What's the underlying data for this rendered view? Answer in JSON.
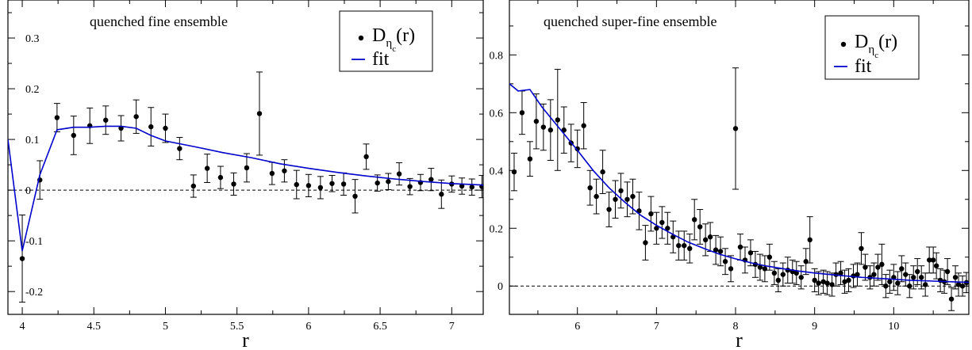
{
  "chart_data": [
    {
      "type": "scatter",
      "title": "quenched fine ensemble",
      "xlabel": "r",
      "ylabel": "",
      "xlim": [
        3.9,
        7.22
      ],
      "ylim": [
        -0.245,
        0.375
      ],
      "xticks": [
        4,
        4.5,
        5,
        5.5,
        6,
        6.5,
        7
      ],
      "xtick_labels": [
        "4",
        "4.5",
        "5",
        "5.5",
        "6",
        "6.5",
        "7"
      ],
      "yticks": [
        -0.2,
        -0.1,
        0,
        0.1,
        0.2,
        0.3
      ],
      "ytick_labels": [
        "-0.2",
        "-0.1",
        "0",
        "0.1",
        "0.2",
        "0.3"
      ],
      "grid": false,
      "reference_line_y": 0,
      "legend": {
        "placement": "top-right",
        "entries": [
          {
            "series": "data",
            "main": "D",
            "sub": "η",
            "subsub": "c",
            "suffix": "(r)"
          },
          {
            "series": "fit",
            "label": "fit"
          }
        ]
      },
      "series": [
        {
          "name": "data",
          "kind": "points_with_errors",
          "color": "#000000",
          "x": [
            4.0,
            4.123,
            4.243,
            4.359,
            4.472,
            4.583,
            4.69,
            4.796,
            4.899,
            5.0,
            5.099,
            5.196,
            5.292,
            5.385,
            5.477,
            5.568,
            5.657,
            5.745,
            5.831,
            5.916,
            6.0,
            6.083,
            6.164,
            6.245,
            6.325,
            6.403,
            6.481,
            6.557,
            6.633,
            6.708,
            6.782,
            6.856,
            6.928,
            7.0,
            7.071,
            7.141,
            7.211
          ],
          "y": [
            -0.135,
            0.02,
            0.143,
            0.108,
            0.127,
            0.138,
            0.122,
            0.145,
            0.125,
            0.122,
            0.082,
            0.008,
            0.043,
            0.025,
            0.012,
            0.044,
            0.151,
            0.033,
            0.038,
            0.011,
            0.009,
            0.005,
            0.013,
            0.012,
            -0.012,
            0.066,
            0.014,
            0.017,
            0.032,
            0.007,
            0.015,
            0.021,
            -0.008,
            0.012,
            0.008,
            0.006,
            0.007
          ],
          "err": [
            0.086,
            0.038,
            0.028,
            0.038,
            0.035,
            0.028,
            0.025,
            0.033,
            0.038,
            0.028,
            0.022,
            0.022,
            0.028,
            0.022,
            0.022,
            0.028,
            0.082,
            0.022,
            0.022,
            0.028,
            0.022,
            0.022,
            0.016,
            0.022,
            0.033,
            0.025,
            0.016,
            0.016,
            0.022,
            0.016,
            0.016,
            0.022,
            0.028,
            0.016,
            0.016,
            0.016,
            0.022
          ]
        },
        {
          "name": "fit",
          "kind": "line",
          "color": "#0000cc",
          "x": [
            3.9,
            4.0,
            4.123,
            4.243,
            4.359,
            4.472,
            4.583,
            4.69,
            4.796,
            4.899,
            5.0,
            5.2,
            5.4,
            5.6,
            5.8,
            6.0,
            6.2,
            6.4,
            6.6,
            6.8,
            7.0,
            7.22
          ],
          "y": [
            0.1,
            -0.12,
            0.03,
            0.119,
            0.124,
            0.124,
            0.126,
            0.126,
            0.122,
            0.108,
            0.097,
            0.086,
            0.074,
            0.064,
            0.052,
            0.043,
            0.035,
            0.028,
            0.022,
            0.017,
            0.013,
            0.01
          ]
        }
      ]
    },
    {
      "type": "scatter",
      "title": "quenched super-fine ensemble",
      "xlabel": "r",
      "ylabel": "",
      "xlim": [
        5.14,
        10.95
      ],
      "ylim": [
        -0.098,
        0.99
      ],
      "xticks": [
        6,
        7,
        8,
        9,
        10
      ],
      "xtick_labels": [
        "6",
        "7",
        "8",
        "9",
        "10"
      ],
      "yticks": [
        0,
        0.2,
        0.4,
        0.6,
        0.8
      ],
      "ytick_labels": [
        "0",
        "0.2",
        "0.4",
        "0.6",
        "0.8"
      ],
      "grid": false,
      "reference_line_y": 0,
      "legend": {
        "placement": "top-right",
        "entries": [
          {
            "series": "data",
            "main": "D",
            "sub": "η",
            "subsub": "c",
            "suffix": "(r)"
          },
          {
            "series": "fit",
            "label": "fit"
          }
        ]
      },
      "series": [
        {
          "name": "data",
          "kind": "points_with_errors",
          "color": "#000000",
          "x": [
            5.2,
            5.3,
            5.4,
            5.48,
            5.57,
            5.66,
            5.75,
            5.83,
            5.92,
            6.0,
            6.08,
            6.16,
            6.24,
            6.32,
            6.4,
            6.48,
            6.55,
            6.63,
            6.7,
            6.78,
            6.86,
            6.93,
            7.0,
            7.07,
            7.14,
            7.21,
            7.28,
            7.35,
            7.42,
            7.48,
            7.55,
            7.62,
            7.68,
            7.75,
            7.81,
            7.87,
            7.94,
            8.0,
            8.06,
            8.12,
            8.19,
            8.25,
            8.31,
            8.37,
            8.43,
            8.49,
            8.54,
            8.6,
            8.66,
            8.72,
            8.77,
            8.83,
            8.89,
            8.94,
            9.0,
            9.05,
            9.11,
            9.16,
            9.22,
            9.27,
            9.33,
            9.38,
            9.43,
            9.49,
            9.54,
            9.59,
            9.64,
            9.7,
            9.75,
            9.8,
            9.85,
            9.9,
            9.95,
            10.0,
            10.05,
            10.1,
            10.15,
            10.2,
            10.25,
            10.3,
            10.35,
            10.4,
            10.45,
            10.5,
            10.54,
            10.59,
            10.64,
            10.68,
            10.73,
            10.78,
            10.82,
            10.87,
            10.92
          ],
          "y": [
            0.395,
            0.6,
            0.44,
            0.57,
            0.55,
            0.54,
            0.575,
            0.54,
            0.495,
            0.475,
            0.555,
            0.34,
            0.31,
            0.395,
            0.265,
            0.3,
            0.33,
            0.3,
            0.31,
            0.26,
            0.15,
            0.25,
            0.2,
            0.22,
            0.2,
            0.17,
            0.14,
            0.14,
            0.13,
            0.23,
            0.205,
            0.16,
            0.17,
            0.125,
            0.12,
            0.085,
            0.06,
            0.545,
            0.135,
            0.09,
            0.115,
            0.075,
            0.065,
            0.06,
            0.1,
            0.045,
            0.02,
            0.04,
            0.055,
            0.05,
            0.045,
            0.03,
            0.085,
            0.16,
            0.02,
            0.01,
            0.015,
            0.01,
            0.005,
            0.04,
            0.045,
            0.015,
            0.02,
            0.035,
            0.04,
            0.13,
            0.065,
            0.03,
            0.04,
            0.065,
            0.075,
            0.0,
            0.015,
            0.03,
            0.01,
            0.06,
            0.04,
            0.0,
            0.03,
            0.05,
            0.03,
            0.005,
            0.09,
            0.09,
            0.07,
            0.02,
            0.015,
            0.05,
            -0.045,
            0.03,
            0.005,
            0.0,
            0.012
          ],
          "err": [
            0.065,
            0.075,
            0.06,
            0.095,
            0.08,
            0.105,
            0.175,
            0.08,
            0.065,
            0.065,
            0.08,
            0.06,
            0.06,
            0.075,
            0.06,
            0.065,
            0.06,
            0.06,
            0.06,
            0.065,
            0.06,
            0.06,
            0.055,
            0.055,
            0.055,
            0.055,
            0.05,
            0.05,
            0.05,
            0.07,
            0.06,
            0.055,
            0.05,
            0.05,
            0.05,
            0.045,
            0.045,
            0.21,
            0.045,
            0.045,
            0.045,
            0.045,
            0.045,
            0.045,
            0.045,
            0.04,
            0.04,
            0.04,
            0.045,
            0.04,
            0.04,
            0.04,
            0.045,
            0.08,
            0.04,
            0.04,
            0.04,
            0.04,
            0.04,
            0.04,
            0.04,
            0.04,
            0.04,
            0.04,
            0.04,
            0.055,
            0.045,
            0.04,
            0.04,
            0.045,
            0.07,
            0.04,
            0.04,
            0.045,
            0.04,
            0.045,
            0.04,
            0.04,
            0.04,
            0.045,
            0.04,
            0.04,
            0.045,
            0.045,
            0.045,
            0.04,
            0.04,
            0.045,
            0.04,
            0.04,
            0.04,
            0.035,
            0.035
          ]
        },
        {
          "name": "fit",
          "kind": "line",
          "color": "#0000cc",
          "x": [
            5.14,
            5.25,
            5.4,
            5.55,
            5.7,
            5.85,
            6.0,
            6.2,
            6.4,
            6.6,
            6.8,
            7.0,
            7.2,
            7.4,
            7.6,
            7.8,
            8.0,
            8.2,
            8.4,
            8.6,
            8.8,
            9.0,
            9.3,
            9.6,
            9.9,
            10.2,
            10.5,
            10.8,
            10.95
          ],
          "y": [
            0.7,
            0.675,
            0.68,
            0.62,
            0.57,
            0.52,
            0.47,
            0.4,
            0.34,
            0.29,
            0.245,
            0.21,
            0.18,
            0.152,
            0.13,
            0.11,
            0.094,
            0.08,
            0.069,
            0.06,
            0.052,
            0.045,
            0.037,
            0.03,
            0.025,
            0.02,
            0.017,
            0.014,
            0.013
          ]
        }
      ]
    }
  ]
}
